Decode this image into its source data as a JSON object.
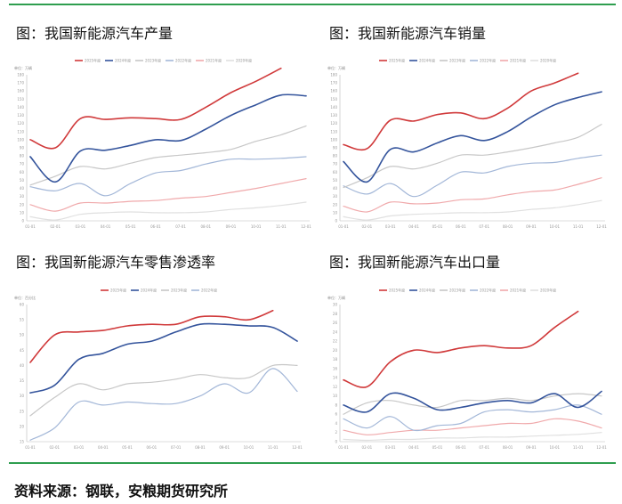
{
  "page": {
    "source_label": "资料来源：钢联，安粮期货研究所",
    "panel_titles": [
      "图：我国新能源汽车产量",
      "图：我国新能源汽车销量",
      "图：我国新能源汽车零售渗透率",
      "图：我国新能源汽车出口量"
    ]
  },
  "colors": {
    "rule": "#2e9e4f",
    "series": [
      "#d0393a",
      "#34549c",
      "#c7c7c7",
      "#a3b7d8",
      "#f0a9ab",
      "#e0e0e0"
    ]
  },
  "chart_data": [
    {
      "type": "line",
      "title": "图：我国新能源汽车产量",
      "unit_label": "单位：万辆",
      "categories": [
        "01-01",
        "02-01",
        "03-01",
        "04-01",
        "05-01",
        "06-01",
        "07-01",
        "08-01",
        "09-01",
        "10-01",
        "11-01",
        "12-01"
      ],
      "ylim": [
        0,
        180
      ],
      "yticks": [
        0,
        10,
        20,
        30,
        40,
        50,
        60,
        70,
        80,
        90,
        100,
        110,
        120,
        130,
        140,
        150,
        160,
        170,
        180
      ],
      "legend_position": "top",
      "grid": false,
      "series": [
        {
          "name": "2025年度",
          "values": [
            100,
            90,
            126,
            125,
            127,
            126,
            125,
            140,
            158,
            172,
            188,
            null
          ]
        },
        {
          "name": "2024年度",
          "values": [
            79,
            48,
            86,
            87,
            93,
            100,
            99,
            113,
            130,
            143,
            155,
            154
          ]
        },
        {
          "name": "2023年度",
          "values": [
            44,
            55,
            67,
            64,
            71,
            78,
            81,
            84,
            88,
            98,
            106,
            117
          ]
        },
        {
          "name": "2022年度",
          "values": [
            42,
            37,
            46,
            31,
            46,
            59,
            62,
            70,
            76,
            76,
            77,
            79
          ]
        },
        {
          "name": "2021年度",
          "values": [
            20,
            12,
            22,
            22,
            24,
            25,
            28,
            30,
            35,
            40,
            46,
            52
          ]
        },
        {
          "name": "2020年度",
          "values": [
            5,
            1,
            8,
            10,
            11,
            10,
            10,
            11,
            14,
            16,
            19,
            23
          ]
        }
      ]
    },
    {
      "type": "line",
      "title": "图：我国新能源汽车销量",
      "unit_label": "单位：万辆",
      "categories": [
        "01-01",
        "02-01",
        "03-01",
        "04-01",
        "05-01",
        "06-01",
        "07-01",
        "08-01",
        "09-01",
        "10-01",
        "11-01",
        "12-01"
      ],
      "ylim": [
        0,
        180
      ],
      "yticks": [
        0,
        10,
        20,
        30,
        40,
        50,
        60,
        70,
        80,
        90,
        100,
        110,
        120,
        130,
        140,
        150,
        160,
        170,
        180
      ],
      "legend_position": "top",
      "grid": false,
      "series": [
        {
          "name": "2025年度",
          "values": [
            94,
            89,
            124,
            123,
            131,
            133,
            126,
            139,
            160,
            170,
            182,
            null
          ]
        },
        {
          "name": "2024年度",
          "values": [
            73,
            48,
            88,
            85,
            96,
            105,
            99,
            110,
            128,
            143,
            152,
            159
          ]
        },
        {
          "name": "2023年度",
          "values": [
            41,
            53,
            67,
            64,
            71,
            81,
            81,
            85,
            90,
            96,
            103,
            119
          ]
        },
        {
          "name": "2022年度",
          "values": [
            43,
            33,
            46,
            30,
            44,
            60,
            59,
            67,
            71,
            72,
            77,
            81
          ]
        },
        {
          "name": "2021年度",
          "values": [
            18,
            11,
            23,
            21,
            22,
            26,
            27,
            32,
            36,
            38,
            45,
            53
          ]
        },
        {
          "name": "2020年度",
          "values": [
            5,
            1,
            6,
            8,
            9,
            10,
            10,
            11,
            14,
            16,
            20,
            25
          ]
        }
      ]
    },
    {
      "type": "line",
      "title": "图：我国新能源汽车零售渗透率",
      "unit_label": "单位：百分比",
      "categories": [
        "01-01",
        "02-01",
        "03-01",
        "04-01",
        "05-01",
        "06-01",
        "07-01",
        "08-01",
        "09-01",
        "10-01",
        "11-01",
        "12-01"
      ],
      "ylim": [
        15,
        60
      ],
      "yticks": [
        15,
        20,
        25,
        30,
        35,
        40,
        45,
        50,
        55,
        60
      ],
      "legend_position": "top",
      "grid": false,
      "series": [
        {
          "name": "2025年度",
          "values": [
            41,
            50,
            51,
            51.5,
            53,
            53.5,
            53.5,
            56,
            56,
            55,
            58,
            null
          ]
        },
        {
          "name": "2024年度",
          "values": [
            31,
            33.5,
            42,
            44,
            47,
            48,
            51,
            53.5,
            53.5,
            53,
            52.5,
            48
          ]
        },
        {
          "name": "2023年度",
          "values": [
            23.5,
            29.5,
            34,
            32,
            34,
            34.5,
            35.5,
            37,
            36,
            36,
            40,
            40
          ]
        },
        {
          "name": "2022年度",
          "values": [
            15.5,
            19.5,
            28,
            27,
            28,
            27.5,
            27.5,
            30,
            34,
            31,
            39,
            31.5
          ]
        }
      ]
    },
    {
      "type": "line",
      "title": "图：我国新能源汽车出口量",
      "unit_label": "单位：万辆",
      "categories": [
        "01-01",
        "02-01",
        "03-01",
        "04-01",
        "05-01",
        "06-01",
        "07-01",
        "08-01",
        "09-01",
        "10-01",
        "11-01",
        "12-01"
      ],
      "ylim": [
        0,
        30
      ],
      "yticks": [
        0,
        2,
        4,
        6,
        8,
        10,
        12,
        14,
        16,
        18,
        20,
        22,
        24,
        26,
        28,
        30
      ],
      "legend_position": "top",
      "grid": false,
      "series": [
        {
          "name": "2025年度",
          "values": [
            13.5,
            12,
            17.5,
            20,
            19.5,
            20.5,
            21,
            20.5,
            21,
            25,
            28.5,
            null
          ]
        },
        {
          "name": "2024年度",
          "values": [
            8,
            6.5,
            10.5,
            9.5,
            7,
            7.5,
            8.5,
            9,
            8.5,
            10.5,
            7.5,
            11
          ]
        },
        {
          "name": "2023年度",
          "values": [
            6,
            8.5,
            9,
            8,
            7.5,
            9,
            9,
            9.5,
            9,
            10,
            10.5,
            10
          ]
        },
        {
          "name": "2022年度",
          "values": [
            5,
            3,
            5.5,
            2.5,
            3.5,
            4,
            6.5,
            7,
            6.5,
            7,
            8,
            6
          ]
        },
        {
          "name": "2021年度",
          "values": [
            2.5,
            1.5,
            2,
            2.5,
            2.5,
            3,
            3.5,
            4,
            4,
            5,
            4.5,
            3
          ]
        },
        {
          "name": "2020年度",
          "values": [
            0.5,
            0.3,
            0.5,
            0.5,
            0.8,
            0.8,
            1,
            1,
            1.2,
            1.4,
            1.6,
            2
          ]
        }
      ]
    }
  ]
}
